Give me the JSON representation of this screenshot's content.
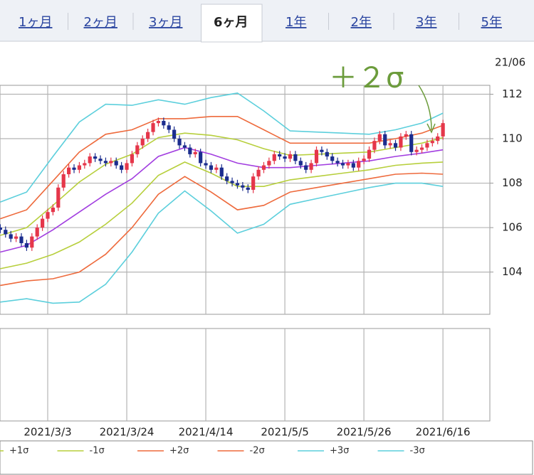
{
  "tabs": [
    "1ヶ月",
    "2ヶ月",
    "3ヶ月",
    "6ヶ月",
    "1年",
    "2年",
    "3年",
    "5年"
  ],
  "active_tab_index": 3,
  "chart_data": {
    "type": "candlestick",
    "date_label": "21/06",
    "annotation": "＋２σ",
    "up_color": "#e5364a",
    "down_color": "#1b2d8e",
    "x": [
      0,
      1,
      2,
      3,
      4,
      5,
      6,
      7,
      8,
      9,
      10,
      11,
      12,
      13,
      14,
      15,
      16,
      17,
      18,
      19,
      20,
      21,
      22,
      23,
      24,
      25,
      26,
      27,
      28,
      29,
      30,
      31,
      32,
      33,
      34,
      35,
      36,
      37,
      38,
      39,
      40,
      41,
      42,
      43,
      44,
      45,
      46,
      47,
      48,
      49,
      50,
      51,
      52,
      53,
      54,
      55,
      56,
      57,
      58,
      59,
      60,
      61,
      62,
      63,
      64,
      65,
      66,
      67,
      68,
      69,
      70,
      71,
      72,
      73,
      74,
      75,
      76,
      77,
      78,
      79,
      80,
      81,
      82,
      83,
      84
    ],
    "open": [
      106.0,
      105.9,
      105.7,
      105.5,
      105.6,
      105.3,
      105.1,
      105.6,
      106.0,
      106.4,
      106.7,
      106.9,
      107.8,
      108.4,
      108.7,
      108.6,
      108.8,
      108.9,
      109.2,
      109.1,
      109.0,
      108.9,
      109.0,
      108.8,
      108.6,
      108.9,
      109.3,
      109.7,
      110.0,
      110.3,
      110.7,
      110.8,
      110.6,
      110.4,
      110.0,
      109.7,
      109.6,
      109.3,
      109.4,
      108.9,
      108.8,
      108.6,
      108.7,
      108.3,
      108.1,
      108.0,
      107.9,
      107.8,
      107.7,
      108.3,
      108.6,
      108.8,
      109.0,
      109.3,
      109.2,
      109.1,
      109.3,
      109.0,
      108.8,
      108.6,
      108.9,
      109.5,
      109.4,
      109.2,
      109.0,
      108.9,
      108.8,
      108.9,
      108.7,
      109.0,
      109.1,
      109.5,
      109.9,
      110.2,
      109.7,
      109.8,
      109.6,
      110.1,
      110.2,
      109.4,
      109.5,
      109.6,
      109.8,
      109.9,
      110.1
    ],
    "high": [
      106.15,
      106.05,
      105.85,
      105.75,
      105.75,
      105.45,
      105.75,
      106.15,
      106.55,
      106.85,
      107.05,
      107.95,
      108.55,
      108.85,
      108.85,
      108.95,
      109.05,
      109.35,
      109.35,
      109.25,
      109.15,
      109.15,
      109.15,
      108.95,
      109.05,
      109.45,
      109.85,
      110.15,
      110.45,
      110.85,
      110.95,
      110.95,
      110.75,
      110.55,
      110.15,
      109.85,
      109.75,
      109.55,
      109.55,
      109.05,
      108.95,
      108.85,
      108.85,
      108.45,
      108.25,
      108.15,
      108.05,
      107.95,
      108.45,
      108.75,
      108.95,
      109.15,
      109.45,
      109.45,
      109.35,
      109.45,
      109.45,
      109.15,
      108.95,
      109.05,
      109.65,
      109.65,
      109.55,
      109.35,
      109.15,
      109.05,
      109.05,
      109.05,
      109.15,
      109.25,
      109.65,
      110.05,
      110.35,
      110.35,
      109.95,
      109.95,
      110.25,
      110.35,
      110.35,
      109.65,
      109.75,
      109.95,
      110.05,
      110.25,
      110.85
    ],
    "low": [
      105.75,
      105.55,
      105.35,
      105.35,
      105.15,
      104.95,
      104.95,
      105.45,
      105.85,
      106.25,
      106.55,
      106.75,
      107.65,
      108.25,
      108.45,
      108.45,
      108.65,
      108.75,
      108.95,
      108.85,
      108.75,
      108.75,
      108.65,
      108.45,
      108.45,
      108.75,
      109.15,
      109.55,
      109.85,
      110.15,
      110.55,
      110.45,
      110.25,
      109.85,
      109.55,
      109.45,
      109.15,
      109.15,
      108.75,
      108.65,
      108.45,
      108.45,
      108.15,
      107.95,
      107.85,
      107.75,
      107.65,
      107.55,
      107.55,
      108.15,
      108.45,
      108.65,
      108.85,
      109.05,
      108.95,
      108.95,
      108.85,
      108.65,
      108.45,
      108.45,
      108.75,
      109.25,
      109.05,
      108.85,
      108.75,
      108.65,
      108.65,
      108.55,
      108.55,
      108.85,
      108.95,
      109.35,
      109.75,
      109.55,
      109.55,
      109.45,
      109.45,
      109.95,
      109.25,
      109.25,
      109.35,
      109.45,
      109.65,
      109.75,
      109.95
    ],
    "close": [
      105.9,
      105.7,
      105.5,
      105.6,
      105.3,
      105.1,
      105.6,
      106.0,
      106.4,
      106.7,
      106.9,
      107.8,
      108.4,
      108.7,
      108.6,
      108.8,
      108.9,
      109.2,
      109.1,
      109.0,
      108.9,
      109.0,
      108.8,
      108.6,
      108.9,
      109.3,
      109.7,
      110.0,
      110.3,
      110.7,
      110.8,
      110.6,
      110.4,
      110.0,
      109.7,
      109.6,
      109.3,
      109.4,
      108.9,
      108.8,
      108.6,
      108.7,
      108.3,
      108.1,
      108.0,
      107.9,
      107.8,
      107.7,
      108.3,
      108.6,
      108.8,
      109.0,
      109.3,
      109.2,
      109.1,
      109.3,
      109.0,
      108.8,
      108.6,
      108.9,
      109.5,
      109.4,
      109.2,
      109.0,
      108.9,
      108.8,
      108.9,
      108.7,
      109.0,
      109.1,
      109.5,
      109.9,
      110.2,
      109.7,
      109.8,
      109.6,
      110.1,
      110.2,
      109.4,
      109.5,
      109.6,
      109.8,
      109.9,
      110.1,
      110.7
    ],
    "bands": [
      {
        "color": "#a23ee0",
        "x": [
          0,
          5,
          10,
          15,
          20,
          25,
          30,
          35,
          40,
          45,
          50,
          55,
          60,
          65,
          70,
          75,
          80,
          84
        ],
        "values": [
          104.9,
          105.2,
          105.9,
          106.7,
          107.5,
          108.2,
          109.2,
          109.6,
          109.3,
          108.9,
          108.7,
          108.7,
          108.8,
          108.9,
          109.0,
          109.2,
          109.35,
          109.5
        ]
      },
      {
        "name": "+1σ",
        "color": "#b7cf3c",
        "x": [
          0,
          5,
          10,
          15,
          20,
          25,
          30,
          35,
          40,
          45,
          50,
          55,
          60,
          65,
          70,
          75,
          80,
          84
        ],
        "values": [
          105.65,
          106.0,
          107.0,
          108.05,
          108.85,
          109.3,
          110.05,
          110.25,
          110.15,
          109.95,
          109.55,
          109.25,
          109.3,
          109.35,
          109.4,
          109.6,
          109.8,
          110.05
        ]
      },
      {
        "name": "-1σ",
        "color": "#b7cf3c",
        "x": [
          0,
          5,
          10,
          15,
          20,
          25,
          30,
          35,
          40,
          45,
          50,
          55,
          60,
          65,
          70,
          75,
          80,
          84
        ],
        "values": [
          104.15,
          104.4,
          104.8,
          105.35,
          106.15,
          107.1,
          108.35,
          108.95,
          108.45,
          107.85,
          107.85,
          108.15,
          108.3,
          108.45,
          108.6,
          108.8,
          108.9,
          108.95
        ]
      },
      {
        "name": "+2σ",
        "color": "#ee6a3c",
        "x": [
          0,
          5,
          10,
          15,
          20,
          25,
          30,
          35,
          40,
          45,
          50,
          55,
          60,
          65,
          70,
          75,
          80,
          84
        ],
        "values": [
          106.4,
          106.8,
          108.1,
          109.4,
          110.2,
          110.4,
          110.9,
          110.9,
          111.0,
          111.0,
          110.4,
          109.8,
          109.8,
          109.8,
          109.8,
          110.0,
          110.25,
          110.6
        ]
      },
      {
        "name": "-2σ",
        "color": "#ee6a3c",
        "x": [
          0,
          5,
          10,
          15,
          20,
          25,
          30,
          35,
          40,
          45,
          50,
          55,
          60,
          65,
          70,
          75,
          80,
          84
        ],
        "values": [
          103.4,
          103.6,
          103.7,
          104.0,
          104.8,
          106.0,
          107.5,
          108.3,
          107.6,
          106.8,
          107.0,
          107.6,
          107.8,
          108.0,
          108.2,
          108.4,
          108.45,
          108.4
        ]
      },
      {
        "name": "+3σ",
        "color": "#5ccfdc",
        "x": [
          0,
          5,
          10,
          15,
          20,
          25,
          30,
          35,
          40,
          45,
          50,
          55,
          60,
          65,
          70,
          75,
          80,
          84
        ],
        "values": [
          107.15,
          107.6,
          109.2,
          110.75,
          111.55,
          111.5,
          111.75,
          111.55,
          111.85,
          112.05,
          111.25,
          110.35,
          110.3,
          110.25,
          110.2,
          110.4,
          110.7,
          111.15
        ]
      },
      {
        "name": "-3σ",
        "color": "#5ccfdc",
        "x": [
          0,
          5,
          10,
          15,
          20,
          25,
          30,
          35,
          40,
          45,
          50,
          55,
          60,
          65,
          70,
          75,
          80,
          84
        ],
        "values": [
          102.65,
          102.8,
          102.6,
          102.65,
          103.45,
          104.9,
          106.65,
          107.65,
          106.75,
          105.75,
          106.15,
          107.05,
          107.3,
          107.55,
          107.8,
          108.0,
          108.0,
          107.85
        ]
      }
    ],
    "xlim": [
      0,
      92.9
    ],
    "ylim": [
      102.1,
      112.4
    ],
    "yticks": [
      104,
      106,
      108,
      110,
      112
    ],
    "xticks": [
      {
        "value": 9,
        "label": "2021/3/3"
      },
      {
        "value": 24,
        "label": "2021/3/24"
      },
      {
        "value": 39,
        "label": "2021/4/14"
      },
      {
        "value": 54,
        "label": "2021/5/5"
      },
      {
        "value": 69,
        "label": "2021/5/26"
      },
      {
        "value": 84,
        "label": "2021/6/16"
      }
    ],
    "grid": true
  }
}
